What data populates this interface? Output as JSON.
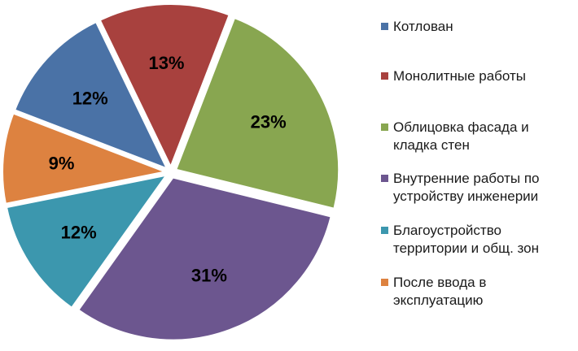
{
  "chart_data": {
    "type": "pie",
    "title": "",
    "slices": [
      {
        "name": "Котлован",
        "value": 12,
        "label": "12%",
        "color": "#4a72a6"
      },
      {
        "name": "Монолитные работы",
        "value": 13,
        "label": "13%",
        "color": "#a8413e"
      },
      {
        "name": "Облицовка фасада и кладка стен",
        "value": 23,
        "label": "23%",
        "color": "#88a650"
      },
      {
        "name": "Внутренние работы по устройству инженерии",
        "value": 31,
        "label": "31%",
        "color": "#6c568f"
      },
      {
        "name": "Благоустройство территории и общ. зон",
        "value": 12,
        "label": "12%",
        "color": "#3c97ae"
      },
      {
        "name": "После ввода в эксплуатацию",
        "value": 9,
        "label": "9%",
        "color": "#dd8240"
      }
    ],
    "legend": {
      "position": "right",
      "items": [
        "Котлован",
        "Монолитные работы",
        "Облицовка фасада и\nкладка стен",
        "Внутренние работы по\nустройству инженерии",
        "Благоустройство\nтерритории и общ. зон",
        "После ввода в\nэксплуатацию"
      ]
    }
  }
}
